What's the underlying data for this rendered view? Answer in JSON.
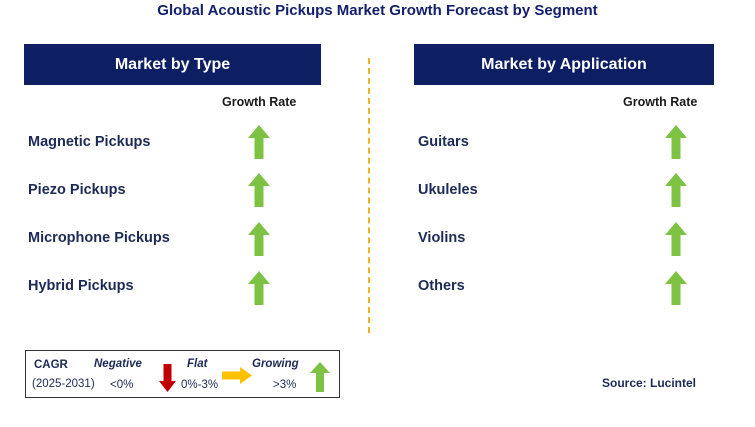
{
  "title": "Global Acoustic Pickups Market Growth Forecast by Segment",
  "left_panel": {
    "header": "Market by Type",
    "growth_label": "Growth Rate",
    "items": [
      {
        "label": "Magnetic Pickups",
        "trend": "growing"
      },
      {
        "label": "Piezo Pickups",
        "trend": "growing"
      },
      {
        "label": "Microphone Pickups",
        "trend": "growing"
      },
      {
        "label": "Hybrid Pickups",
        "trend": "growing"
      }
    ]
  },
  "right_panel": {
    "header": "Market by Application",
    "growth_label": "Growth Rate",
    "items": [
      {
        "label": "Guitars",
        "trend": "growing"
      },
      {
        "label": "Ukuleles",
        "trend": "growing"
      },
      {
        "label": "Violins",
        "trend": "growing"
      },
      {
        "label": "Others",
        "trend": "growing"
      }
    ]
  },
  "legend": {
    "cagr_label": "CAGR",
    "period": "(2025-2031)",
    "negative": {
      "label": "Negative",
      "range": "<0%",
      "color": "#c00000"
    },
    "flat": {
      "label": "Flat",
      "range": "0%-3%",
      "color": "#ffc000"
    },
    "growing": {
      "label": "Growing",
      "range": ">3%",
      "color": "#7dc242"
    }
  },
  "source": "Source: Lucintel",
  "colors": {
    "header_bg": "#0d1e63",
    "divider": "#f0b323",
    "up_arrow": "#7dc242"
  }
}
